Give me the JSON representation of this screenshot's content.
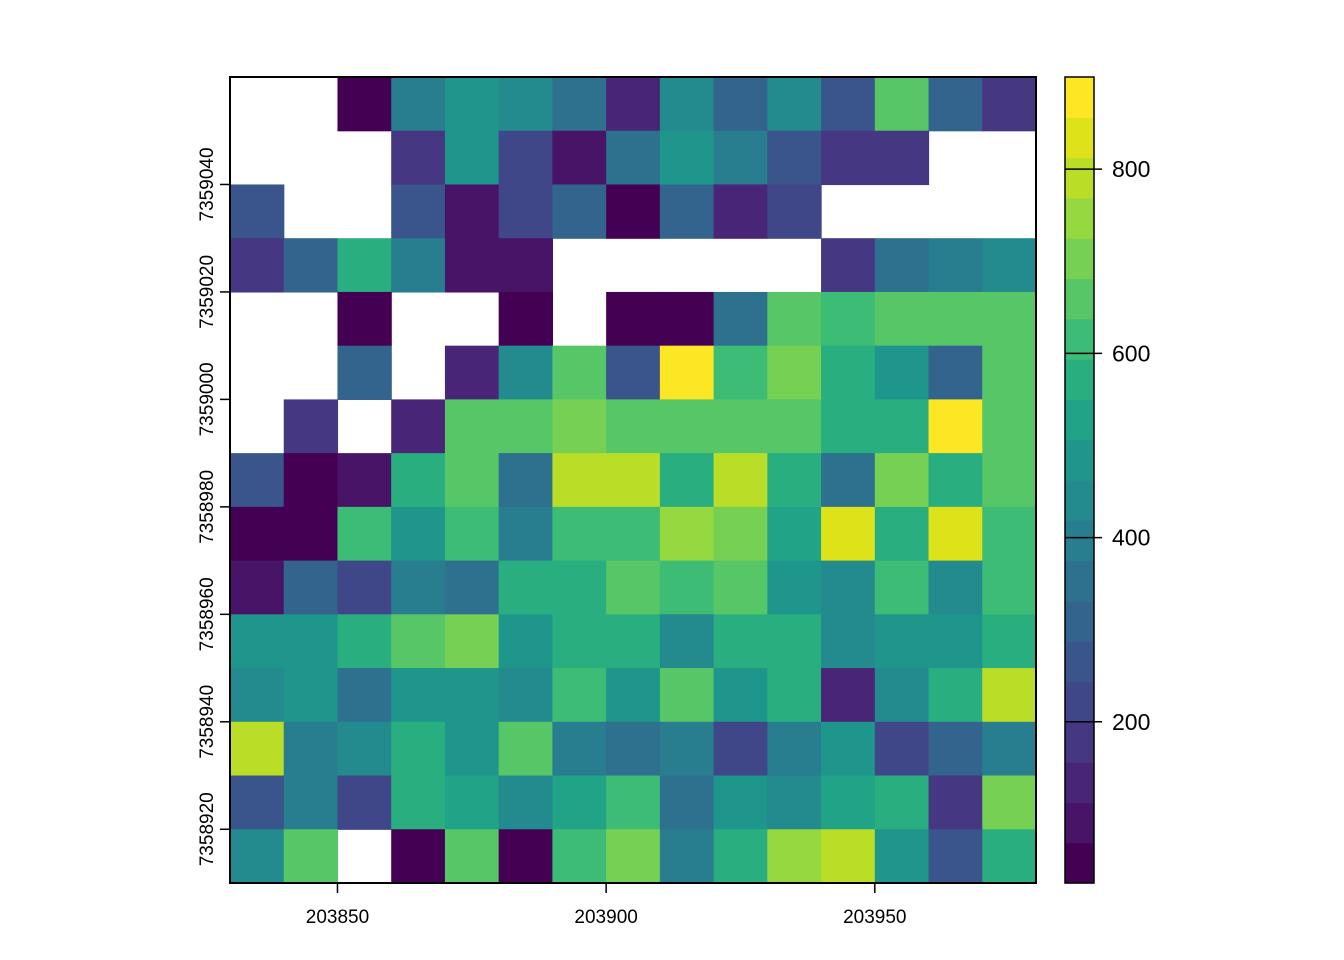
{
  "chart_data": {
    "type": "heatmap",
    "title": "",
    "xlabel": "",
    "ylabel": "",
    "xlim": [
      203830,
      203980
    ],
    "ylim": [
      7358910,
      7359060
    ],
    "cell_size": 10,
    "x_ticks": [
      203850,
      203900,
      203950
    ],
    "x_tick_labels": [
      "203850",
      "203900",
      "203950"
    ],
    "y_ticks": [
      7358920,
      7358940,
      7358960,
      7358980,
      7359000,
      7359020,
      7359040
    ],
    "y_tick_labels": [
      "7358920",
      "7358940",
      "7358960",
      "7358980",
      "7359000",
      "7359020",
      "7359040"
    ],
    "colorbar": {
      "min": 25,
      "max": 900,
      "ticks": [
        200,
        400,
        600,
        800
      ],
      "tick_labels": [
        "200",
        "400",
        "600",
        "800"
      ],
      "colors": [
        "#440154",
        "#481467",
        "#482576",
        "#453781",
        "#3F4788",
        "#39558C",
        "#32648E",
        "#2D718E",
        "#287D8E",
        "#238A8D",
        "#1F968B",
        "#20A386",
        "#29AF7F",
        "#3CBC75",
        "#56C667",
        "#75D054",
        "#95D840",
        "#BADE28",
        "#DDE318",
        "#FDE725"
      ]
    },
    "rows_top_to_bottom": [
      [
        null,
        null,
        30,
        380,
        480,
        430,
        340,
        150,
        420,
        300,
        420,
        250,
        640,
        310,
        160
      ],
      [
        null,
        null,
        null,
        160,
        470,
        220,
        100,
        360,
        470,
        380,
        280,
        170,
        170,
        null,
        null
      ],
      [
        260,
        null,
        null,
        250,
        90,
        230,
        320,
        30,
        300,
        140,
        240,
        null,
        null,
        null,
        null
      ],
      [
        180,
        320,
        560,
        390,
        90,
        90,
        null,
        null,
        null,
        null,
        null,
        180,
        350,
        380,
        450
      ],
      [
        null,
        null,
        40,
        null,
        null,
        40,
        null,
        40,
        40,
        360,
        670,
        600,
        640,
        640,
        640
      ],
      [
        null,
        null,
        310,
        null,
        120,
        420,
        670,
        280,
        890,
        620,
        710,
        590,
        480,
        290,
        670
      ],
      [
        null,
        170,
        null,
        120,
        650,
        650,
        710,
        680,
        680,
        680,
        680,
        590,
        590,
        890,
        670
      ],
      [
        250,
        40,
        100,
        590,
        640,
        370,
        770,
        770,
        590,
        770,
        560,
        370,
        700,
        570,
        650
      ],
      [
        40,
        40,
        600,
        470,
        620,
        400,
        620,
        620,
        760,
        690,
        540,
        820,
        590,
        820,
        620
      ],
      [
        110,
        300,
        200,
        400,
        340,
        560,
        560,
        660,
        600,
        640,
        480,
        420,
        600,
        430,
        630
      ],
      [
        500,
        500,
        550,
        640,
        690,
        490,
        550,
        590,
        420,
        550,
        550,
        440,
        480,
        480,
        570
      ],
      [
        420,
        470,
        370,
        500,
        500,
        450,
        620,
        480,
        670,
        480,
        560,
        150,
        440,
        590,
        770
      ],
      [
        770,
        400,
        450,
        560,
        480,
        670,
        400,
        370,
        410,
        240,
        380,
        470,
        230,
        290,
        390
      ],
      [
        280,
        410,
        210,
        580,
        540,
        440,
        510,
        610,
        360,
        500,
        420,
        540,
        580,
        170,
        690
      ],
      [
        420,
        660,
        null,
        40,
        660,
        40,
        620,
        710,
        410,
        570,
        750,
        800,
        470,
        270,
        570
      ]
    ]
  }
}
